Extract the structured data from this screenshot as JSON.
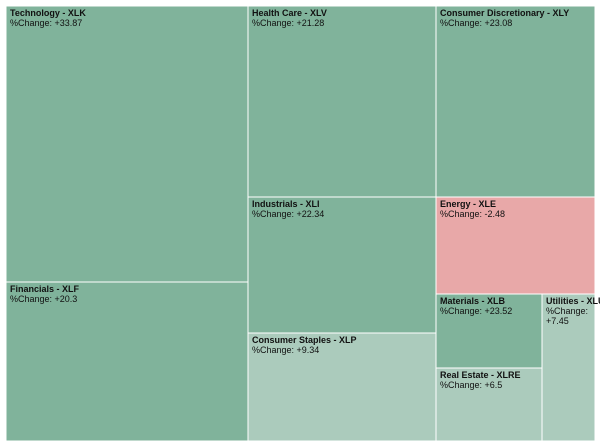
{
  "value_prefix": "%Change: ",
  "colors": {
    "strong_gain": "#80b39b",
    "mild_gain": "#abcbbc",
    "loss": "#e8a8a8",
    "border": "#ffffff",
    "text": "#111111"
  },
  "chart_data": {
    "type": "treemap",
    "title": "",
    "metric_label": "%Change",
    "tiles": [
      {
        "name": "Technology - XLK",
        "value": 33.87
      },
      {
        "name": "Financials - XLF",
        "value": 20.3
      },
      {
        "name": "Health Care - XLV",
        "value": 21.28
      },
      {
        "name": "Industrials - XLI",
        "value": 22.34
      },
      {
        "name": "Consumer Staples - XLP",
        "value": 9.34
      },
      {
        "name": "Consumer Discretionary - XLY",
        "value": 23.08
      },
      {
        "name": "Energy - XLE",
        "value": -2.48
      },
      {
        "name": "Materials - XLB",
        "value": 23.52
      },
      {
        "name": "Real Estate - XLRE",
        "value": 6.5
      },
      {
        "name": "Utilities - XLU",
        "value": 7.45
      }
    ]
  }
}
